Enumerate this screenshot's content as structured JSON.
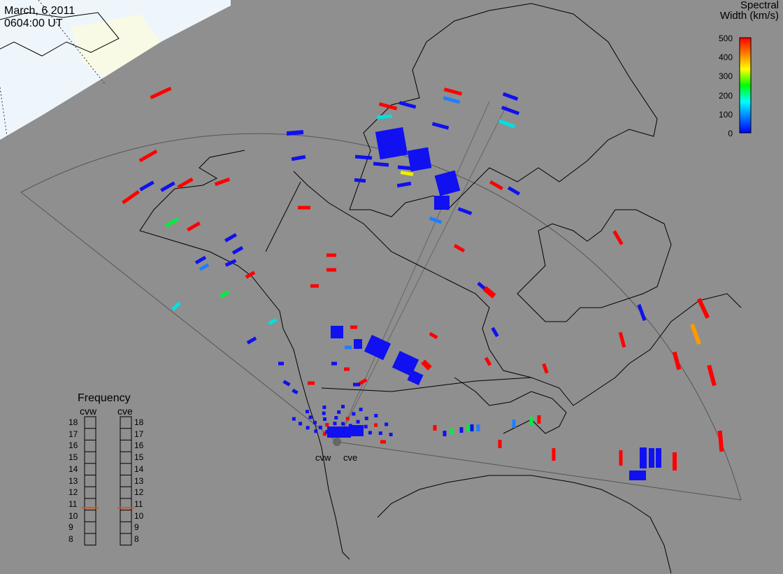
{
  "header": {
    "date": "March, 6 2011",
    "time": "0604:00 UT"
  },
  "colorbar": {
    "title_line1": "Spectral",
    "title_line2": "Width (km/s)",
    "ticks": [
      "500",
      "400",
      "300",
      "200",
      "100",
      "0"
    ],
    "range": [
      0,
      500
    ],
    "colors": [
      "#0000ff",
      "#0080ff",
      "#00ffff",
      "#00ff00",
      "#ffff00",
      "#ff8000",
      "#ff0000"
    ]
  },
  "frequency_panel": {
    "title": "Frequency",
    "radars": [
      "cvw",
      "cve"
    ],
    "scale": [
      "18",
      "17",
      "16",
      "15",
      "14",
      "13",
      "12",
      "11",
      "10",
      "9",
      "8"
    ],
    "cvw_value": 10.7,
    "cve_value": 10.7,
    "marker_color": "#e05010"
  },
  "radar_sites": [
    "cvw",
    "cve"
  ],
  "colors": {
    "background": "#8f8f8f",
    "daylight": "#eef6fc",
    "terminator_shade": "#fbfbe0"
  }
}
